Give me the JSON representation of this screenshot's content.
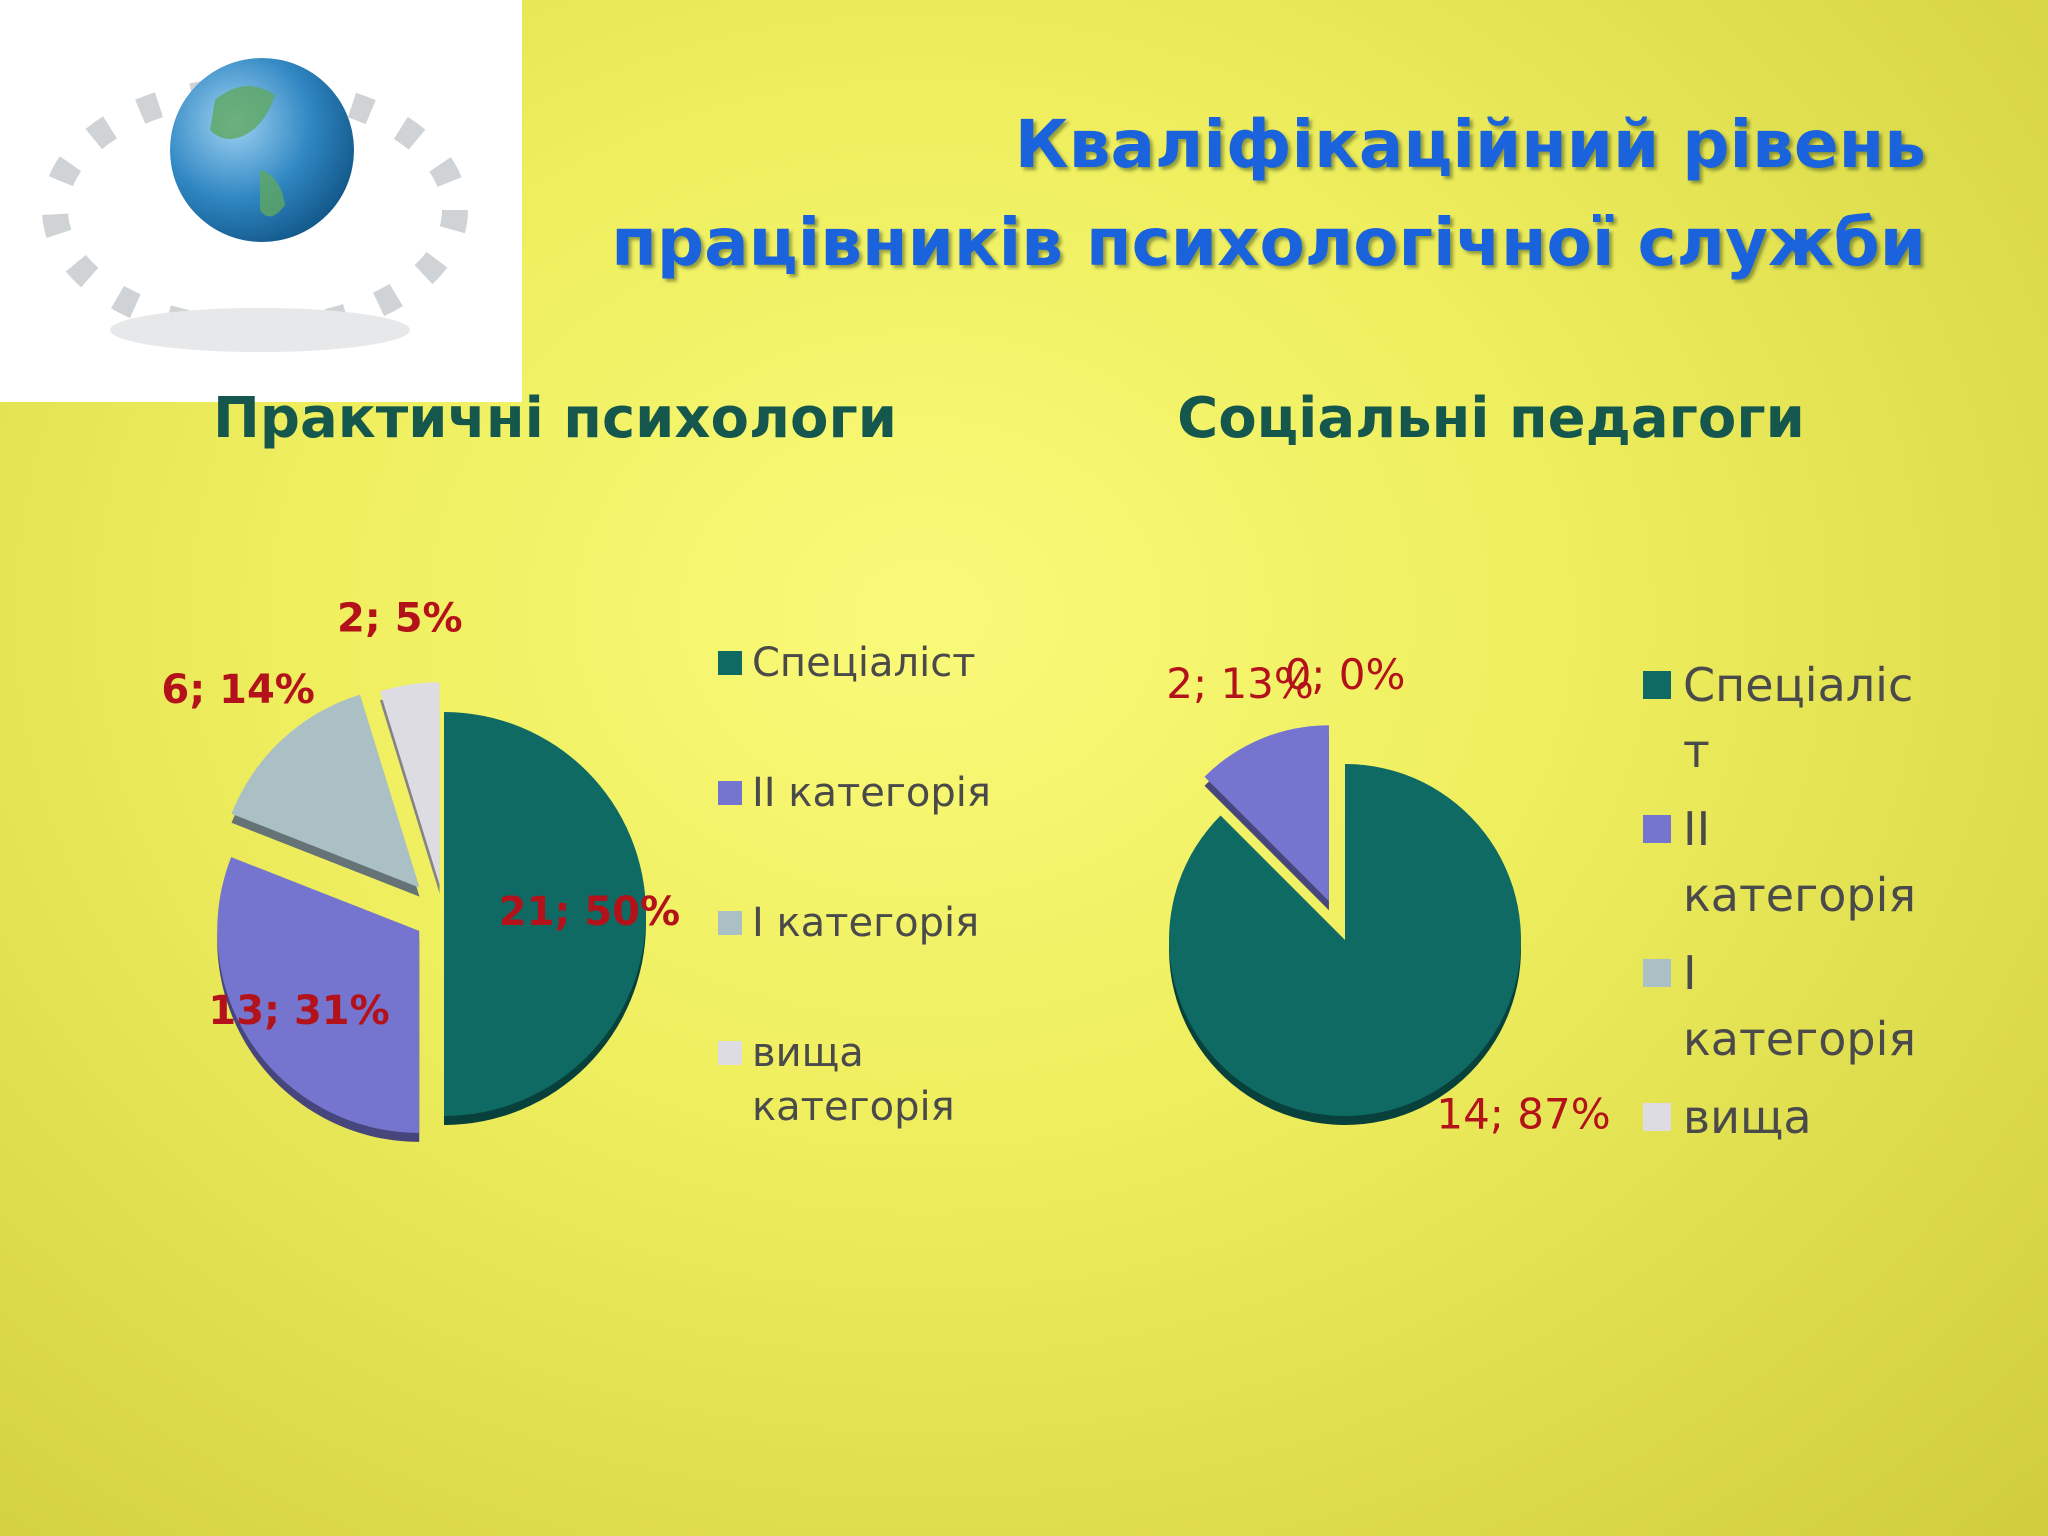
{
  "title": {
    "lines": [
      "Кваліфікаційний  рівень",
      "працівників психологічної служби"
    ]
  },
  "chart_data": [
    {
      "type": "pie",
      "title": "Практичні психологи",
      "categories": [
        "Спеціаліст",
        "ІІ категорія",
        "І категорія",
        "вища категорія"
      ],
      "values": [
        21,
        13,
        6,
        2
      ],
      "value_labels": [
        "21; 50%",
        "13; 31%",
        "6; 14%",
        "2; 5%"
      ],
      "colors": [
        "#0e6a62",
        "#7575cf",
        "#aac0c4",
        "#dcdce2"
      ]
    },
    {
      "type": "pie",
      "title": "Соціальні педагоги",
      "categories": [
        "Спеціаліст",
        "ІІ категорія",
        "І категорія",
        "вища"
      ],
      "values": [
        14,
        2,
        0,
        0
      ],
      "value_labels": [
        "14; 87%",
        "2; 13%",
        "0; 0%",
        null
      ],
      "colors": [
        "#0e6a62",
        "#7575cf",
        "#aac0c4",
        "#dcdce2"
      ]
    }
  ]
}
